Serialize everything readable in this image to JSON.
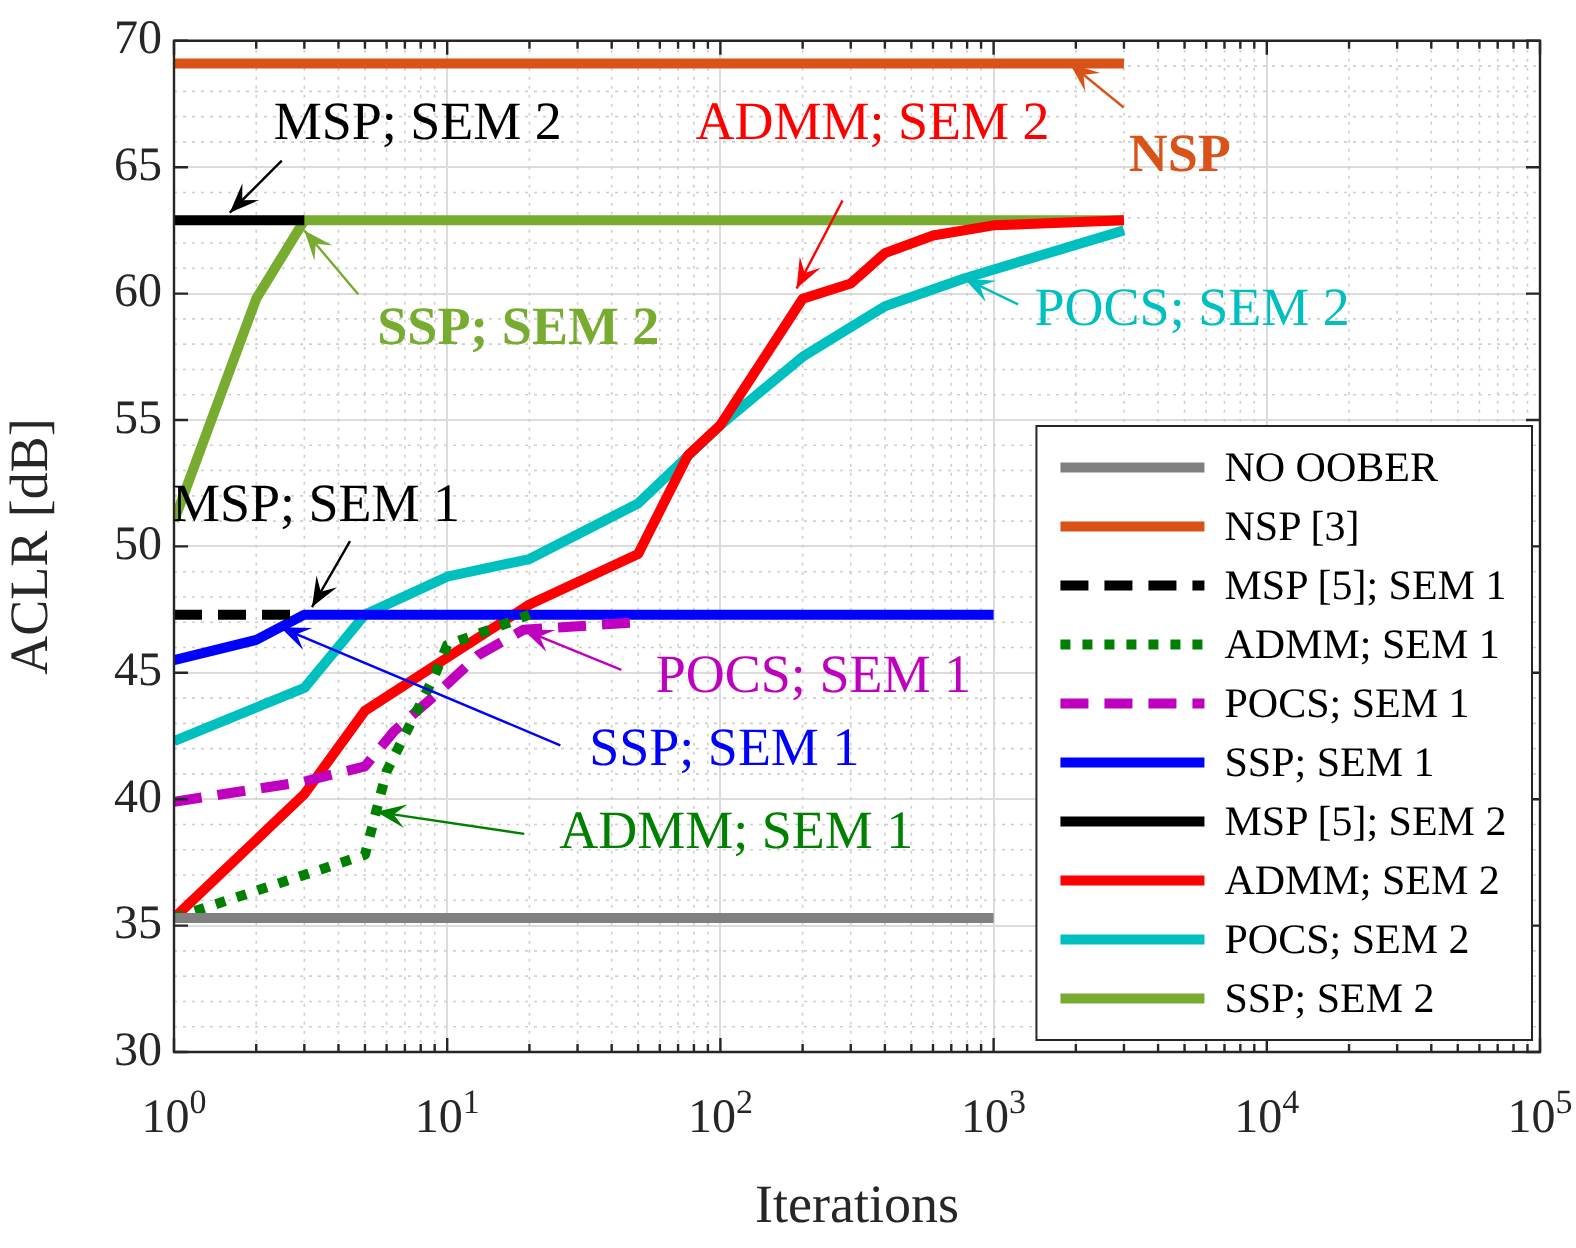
{
  "chart_data": {
    "type": "line",
    "xlabel": "Iterations",
    "ylabel": "ACLR [dB]",
    "log": "x",
    "xlim": [
      1,
      100000
    ],
    "ylim": [
      30,
      70
    ],
    "xticks": [
      {
        "value": 1,
        "label": "10$^{0}$"
      },
      {
        "value": 10,
        "label": "10$^{1}$"
      },
      {
        "value": 100,
        "label": "10$^{2}$"
      },
      {
        "value": 1000,
        "label": "10$^{3}$"
      },
      {
        "value": 10000,
        "label": "10$^{4}$"
      },
      {
        "value": 100000,
        "label": "10$^{5}$"
      }
    ],
    "yticks": [
      30,
      35,
      40,
      45,
      50,
      55,
      60,
      65,
      70
    ],
    "grid": true,
    "legend": "bottom right",
    "series": [
      {
        "name": "NO OOBER",
        "color": "#808080",
        "x": [
          1,
          1000
        ],
        "values": [
          35.3,
          35.3
        ]
      },
      {
        "name": "NSP [3]",
        "color": "#d95319",
        "x": [
          1,
          3000
        ],
        "values": [
          69.1,
          69.1
        ]
      },
      {
        "name": "MSP [5]; SEM 1",
        "color": "#000000",
        "line_style": "dashed",
        "x": [
          1,
          3
        ],
        "values": [
          47.3,
          47.3
        ]
      },
      {
        "name": "ADMM; SEM 1",
        "color": "#008000",
        "line_style": "dotted",
        "x": [
          1,
          5,
          6,
          9,
          10,
          16,
          20
        ],
        "values": [
          35.3,
          37.8,
          41.1,
          44.9,
          46.1,
          46.9,
          47.3
        ]
      },
      {
        "name": "POCS; SEM 1",
        "color": "#bf00bf",
        "line_style": "dashed",
        "x": [
          1,
          3,
          5,
          6.4,
          9,
          13,
          19,
          50
        ],
        "values": [
          39.9,
          40.7,
          41.3,
          42.7,
          44.1,
          45.7,
          46.7,
          47.0
        ]
      },
      {
        "name": "SSP; SEM 1",
        "color": "#0000ff",
        "x": [
          1,
          2,
          3,
          1000
        ],
        "values": [
          45.5,
          46.3,
          47.3,
          47.3
        ]
      },
      {
        "name": "MSP [5]; SEM 2",
        "color": "#000000",
        "x": [
          1,
          3
        ],
        "values": [
          62.9,
          62.9
        ]
      },
      {
        "name": "ADMM; SEM 2",
        "color": "#ff0000",
        "x": [
          1,
          3,
          5,
          10,
          20,
          50,
          76,
          100,
          200,
          300,
          400,
          600,
          1000,
          3000
        ],
        "values": [
          35.3,
          40.2,
          43.5,
          45.6,
          47.7,
          49.7,
          53.6,
          54.8,
          59.8,
          60.4,
          61.6,
          62.3,
          62.7,
          62.9
        ]
      },
      {
        "name": "POCS; SEM 2",
        "color": "#00bfbf",
        "x": [
          1,
          3,
          5,
          10,
          20,
          50,
          100,
          200,
          400,
          780,
          3000
        ],
        "values": [
          42.3,
          44.4,
          47.3,
          48.8,
          49.5,
          51.7,
          54.8,
          57.5,
          59.5,
          60.6,
          62.5
        ]
      },
      {
        "name": "SSP; SEM 2",
        "color": "#77ac30",
        "x": [
          1,
          2,
          3,
          3000
        ],
        "values": [
          51.0,
          59.8,
          62.9,
          62.9
        ]
      }
    ],
    "annotations": [
      {
        "text": "NSP",
        "x": 1900,
        "y": 69.1
      },
      {
        "text": "MSP; SEM 2",
        "x": 1.6,
        "y": 63.2
      },
      {
        "text": "ADMM; SEM 2",
        "x": 190,
        "y": 60.2
      },
      {
        "text": "SSP; SEM 2",
        "x": 3,
        "y": 62.5
      },
      {
        "text": "POCS; SEM 2",
        "x": 780,
        "y": 60.6
      },
      {
        "text": "MSP; SEM 1",
        "x": 3.2,
        "y": 47.6
      },
      {
        "text": "POCS; SEM 1",
        "x": 19,
        "y": 46.7
      },
      {
        "text": "SSP; SEM 1",
        "x": 2.45,
        "y": 46.8
      },
      {
        "text": "ADMM; SEM 1",
        "x": 5.5,
        "y": 39.5
      }
    ]
  }
}
